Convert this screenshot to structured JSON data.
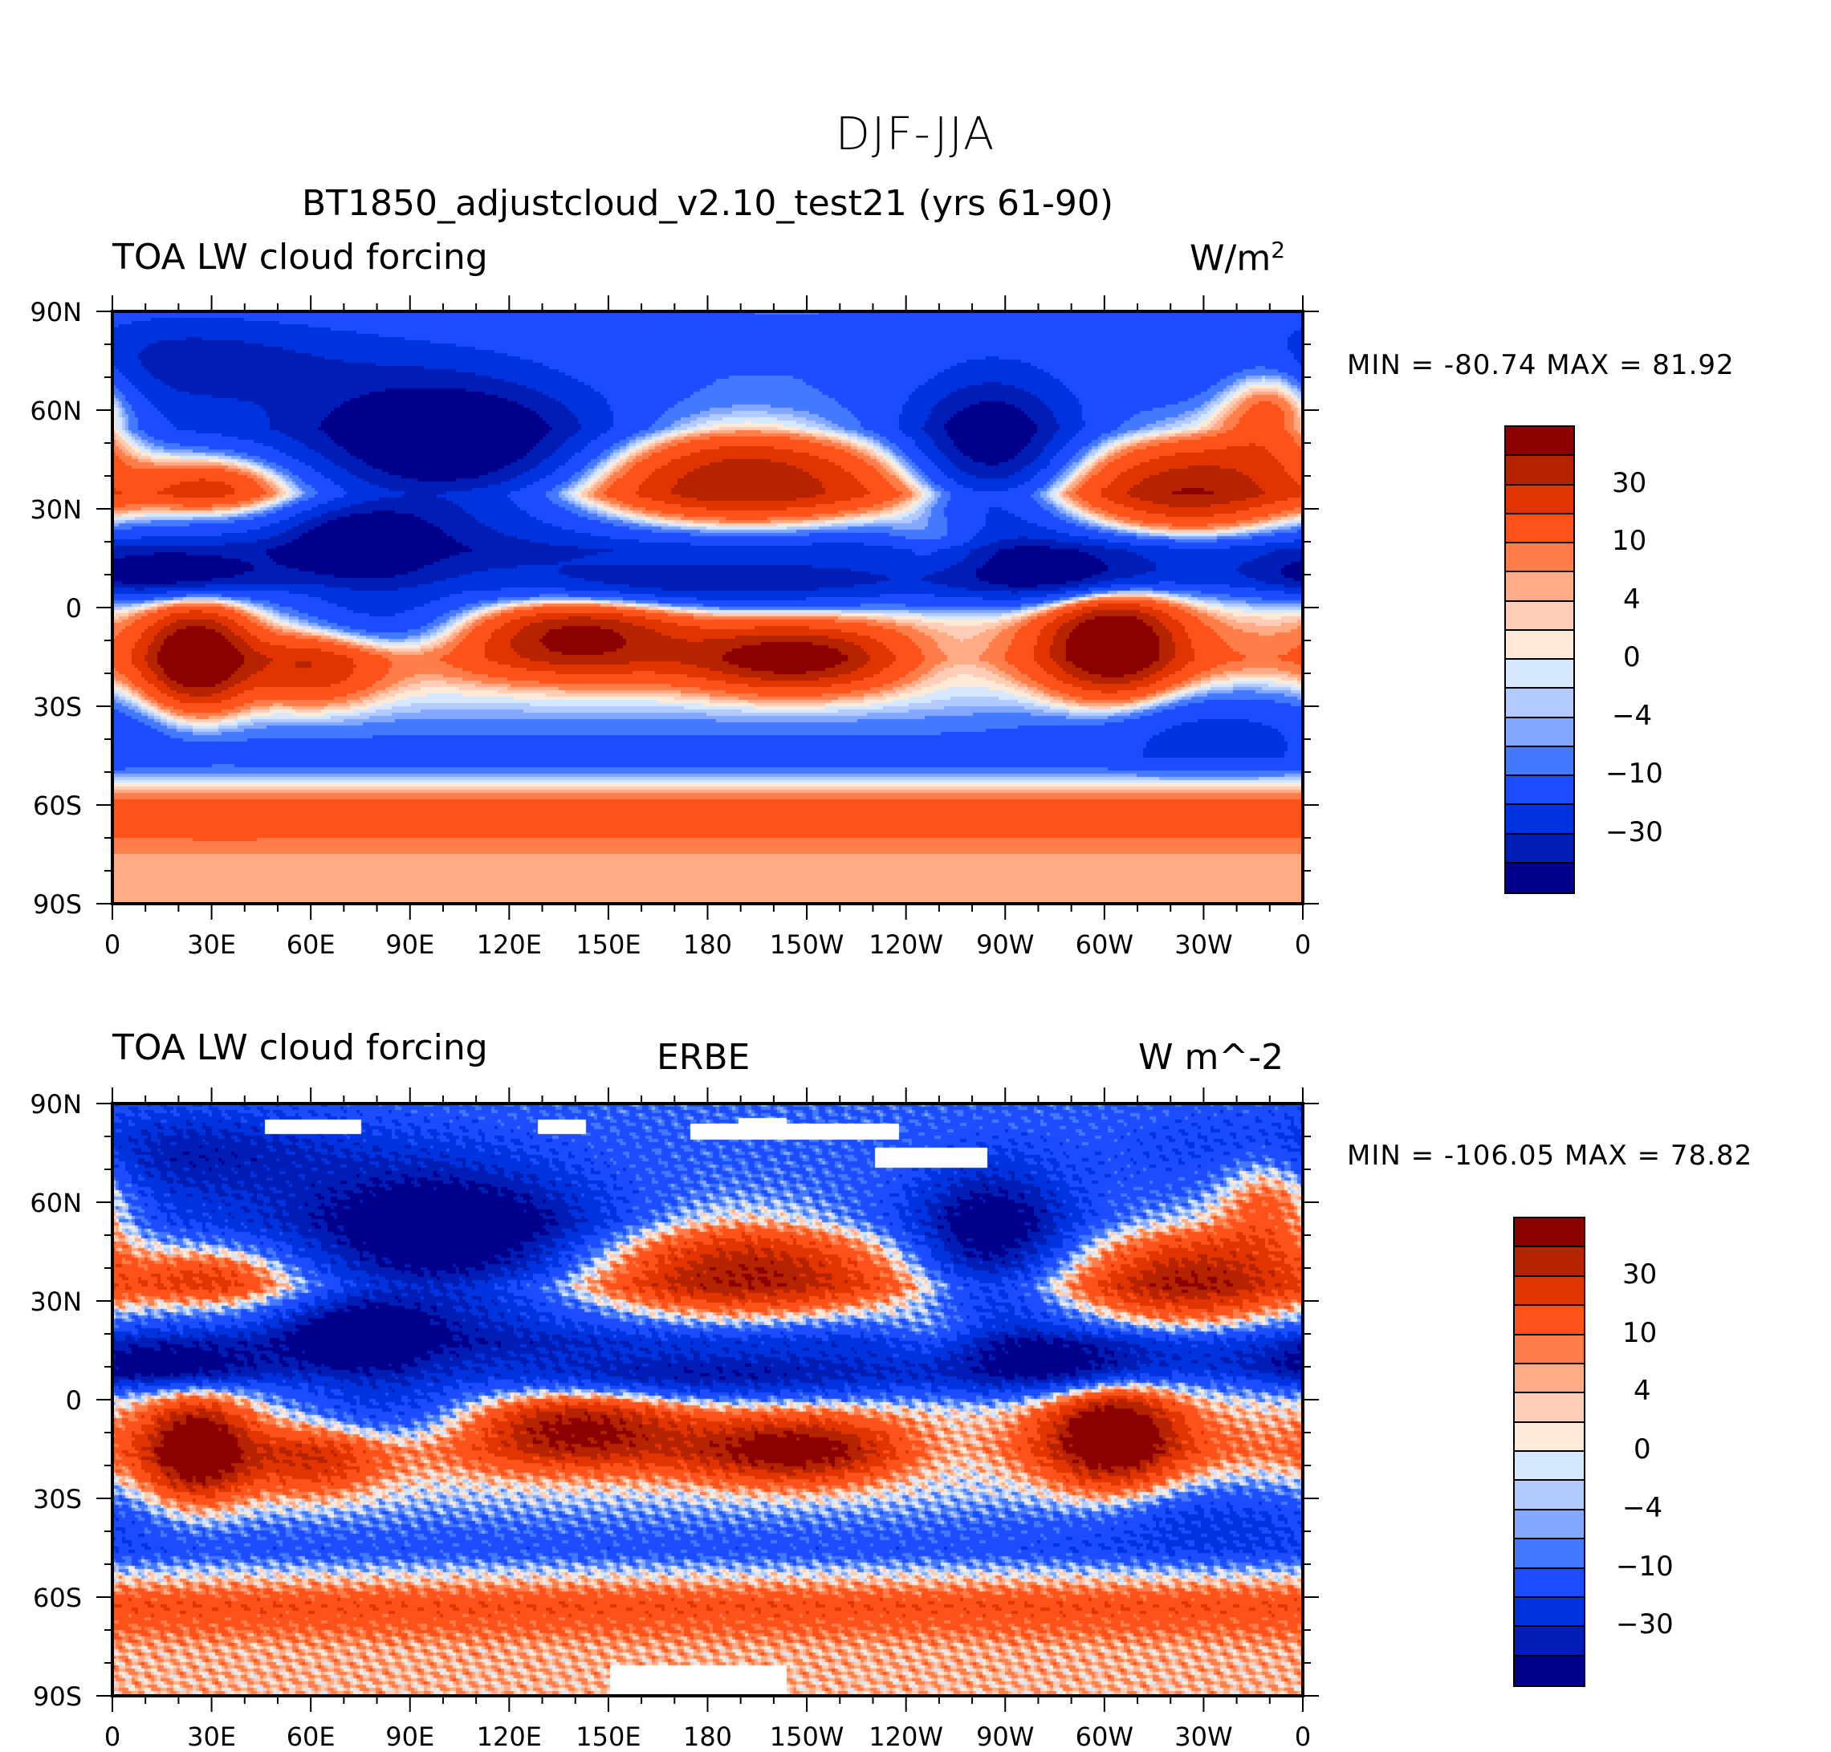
{
  "main_title": "DJF-JJA",
  "colors": [
    "#8b0000",
    "#b52300",
    "#e23400",
    "#ff511a",
    "#ff7d48",
    "#ffab85",
    "#ffcdb5",
    "#ffead8",
    "#d5e8ff",
    "#b3caff",
    "#82a8ff",
    "#4479ff",
    "#1b4cff",
    "#0033e0",
    "#001db5",
    "#00008b"
  ],
  "chart_data": [
    {
      "type": "heatmap",
      "title_left": "TOA LW cloud forcing",
      "title_center": "BT1850_adjustcloud_v2.10_test21 (yrs 61-90)",
      "title_right": "W/m",
      "title_right_sup": "2",
      "min_max": "MIN = -80.74 MAX =  81.92",
      "xticks": [
        "0",
        "30E",
        "60E",
        "90E",
        "120E",
        "150E",
        "180",
        "150W",
        "120W",
        "90W",
        "60W",
        "30W",
        "0"
      ],
      "yticks": [
        "90N",
        "60N",
        "30N",
        "0",
        "30S",
        "60S",
        "90S"
      ],
      "xlim": [
        0,
        360
      ],
      "ylim": [
        -90,
        90
      ],
      "colorbar_labels": [
        "30",
        "10",
        "4",
        "0",
        "−4",
        "−10",
        "−30"
      ]
    },
    {
      "type": "heatmap",
      "title_left": "TOA LW cloud forcing",
      "title_center": "ERBE",
      "title_right": "W m^-2",
      "min_max": "MIN = -106.05 MAX =  78.82",
      "xticks": [
        "0",
        "30E",
        "60E",
        "90E",
        "120E",
        "150E",
        "180",
        "150W",
        "120W",
        "90W",
        "60W",
        "30W",
        "0"
      ],
      "yticks": [
        "90N",
        "60N",
        "30N",
        "0",
        "30S",
        "60S",
        "90S"
      ],
      "xlim": [
        0,
        360
      ],
      "ylim": [
        -90,
        90
      ],
      "colorbar_labels": [
        "30",
        "10",
        "4",
        "0",
        "−4",
        "−10",
        "−30"
      ]
    }
  ]
}
